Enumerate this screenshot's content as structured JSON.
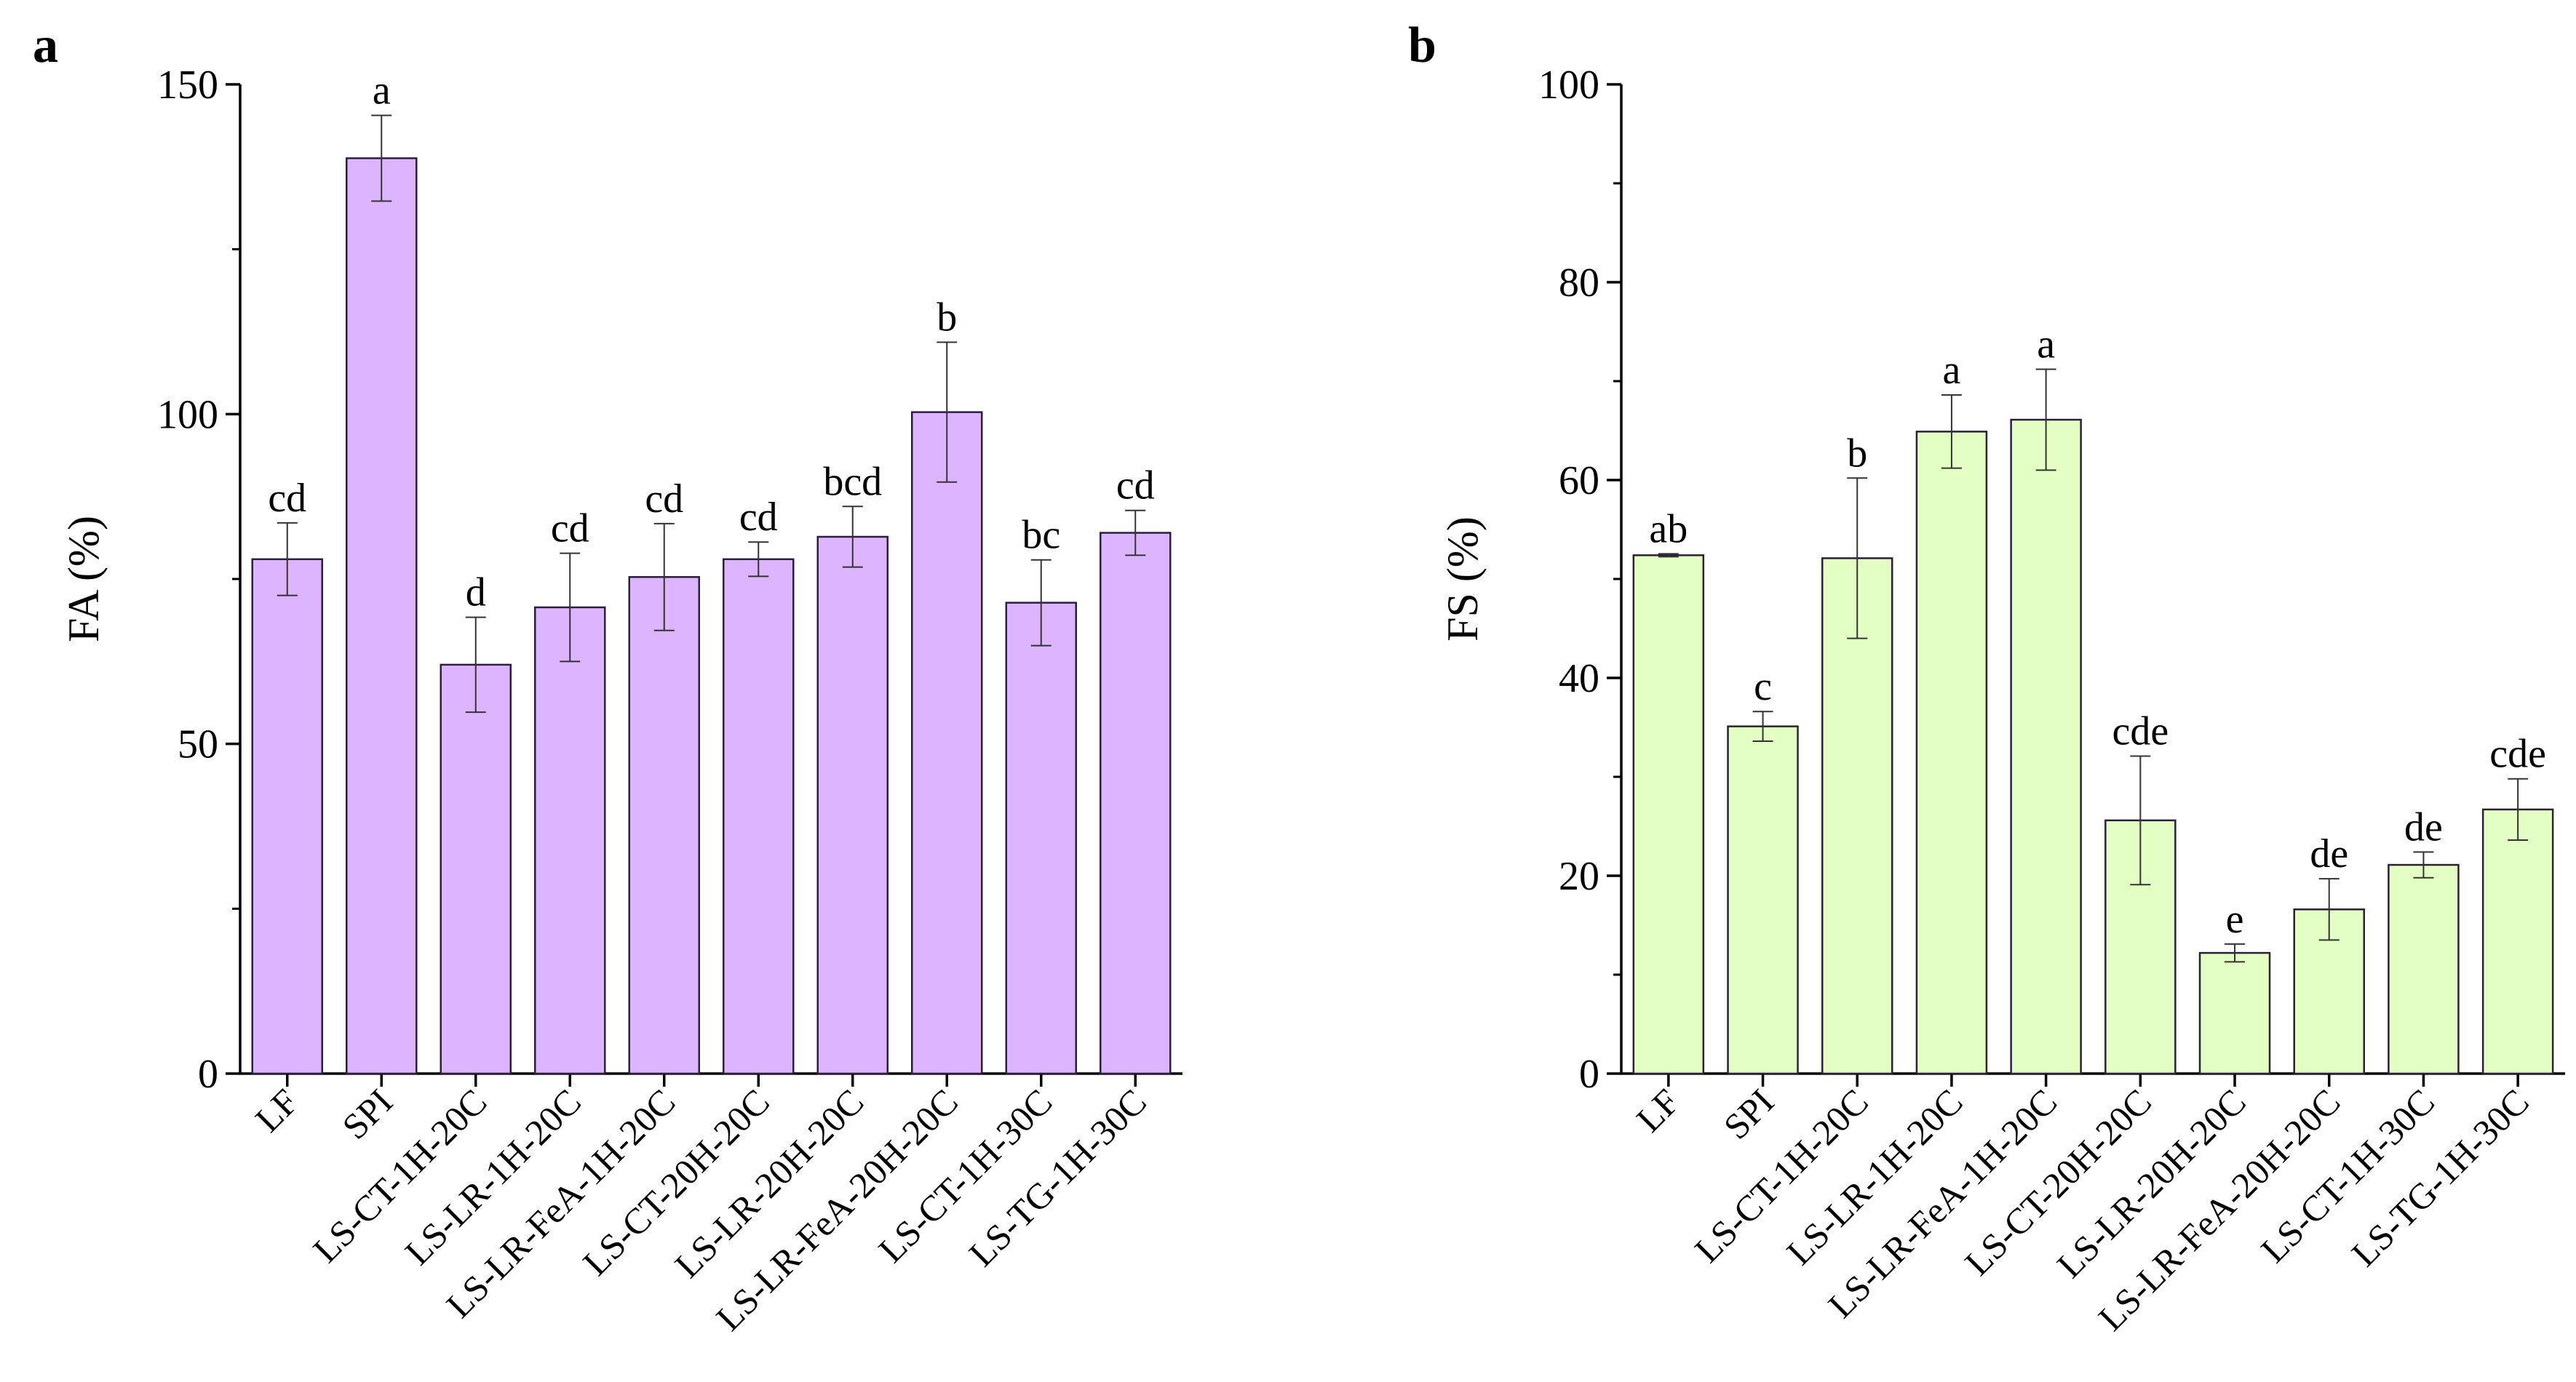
{
  "chart_data": [
    {
      "type": "bar",
      "panel_label": "a",
      "title": "",
      "xlabel": "",
      "ylabel": "FA (%)",
      "ylim": [
        0,
        150
      ],
      "yticks": [
        0,
        50,
        100,
        150
      ],
      "yticks_labels": [
        "0",
        "50",
        "100",
        "150"
      ],
      "grid": false,
      "bar_color": "#dcb4ff",
      "categories": [
        "LF",
        "SPI",
        "LS-CT-1H-20C",
        "LS-LR-1H-20C",
        "LS-LR-FeA-1H-20C",
        "LS-CT-20H-20C",
        "LS-LR-20H-20C",
        "LS-LR-FeA-20H-20C",
        "LS-CT-1H-30C",
        "LS-TG-1H-30C"
      ],
      "values": [
        78,
        138.8,
        62,
        70.7,
        75.3,
        78,
        81.4,
        100.3,
        71.4,
        82
      ],
      "errors": [
        5.5,
        6.5,
        7.2,
        8.2,
        8.1,
        2.6,
        4.6,
        10.6,
        6.5,
        3.4
      ],
      "significance": [
        "cd",
        "a",
        "d",
        "cd",
        "cd",
        "cd",
        "bcd",
        "b",
        "bc",
        "cd"
      ]
    },
    {
      "type": "bar",
      "panel_label": "b",
      "title": "",
      "xlabel": "",
      "ylabel": "FS (%)",
      "ylim": [
        0,
        100
      ],
      "yticks": [
        0,
        20,
        40,
        60,
        80,
        100
      ],
      "yticks_labels": [
        "0",
        "20",
        "40",
        "60",
        "80",
        "100"
      ],
      "grid": false,
      "bar_color": "#e4ffc4",
      "categories": [
        "LF",
        "SPI",
        "LS-CT-1H-20C",
        "LS-LR-1H-20C",
        "LS-LR-FeA-1H-20C",
        "LS-CT-20H-20C",
        "LS-LR-20H-20C",
        "LS-LR-FeA-20H-20C",
        "LS-CT-1H-30C",
        "LS-TG-1H-30C"
      ],
      "values": [
        52.4,
        35.1,
        52.1,
        64.9,
        66.1,
        25.6,
        12.2,
        16.6,
        21.1,
        26.7
      ],
      "errors": [
        0.15,
        1.5,
        8.1,
        3.7,
        5.1,
        6.5,
        0.9,
        3.1,
        1.3,
        3.1
      ],
      "significance": [
        "ab",
        "c",
        "b",
        "a",
        "a",
        "cde",
        "e",
        "de",
        "de",
        "cde"
      ]
    }
  ]
}
